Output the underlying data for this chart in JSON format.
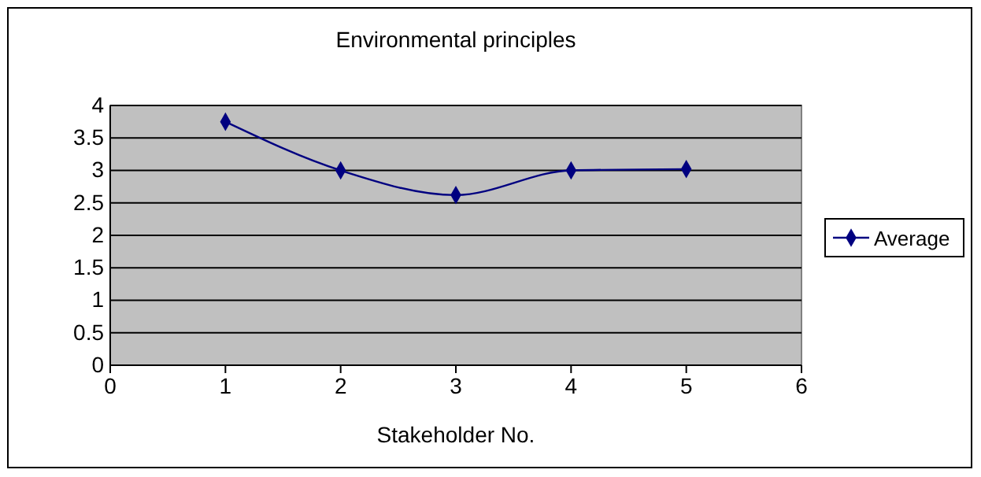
{
  "chart_data": {
    "type": "line",
    "title": "Environmental principles",
    "xlabel": "Stakeholder No.",
    "x": [
      1,
      2,
      3,
      4,
      5
    ],
    "series": [
      {
        "name": "Average",
        "color": "#000080",
        "values": [
          3.75,
          3.0,
          2.62,
          3.0,
          3.02
        ]
      }
    ],
    "xlim": [
      0,
      6
    ],
    "xticks": [
      0,
      1,
      2,
      3,
      4,
      5,
      6
    ],
    "ylim": [
      0,
      4
    ],
    "yticks": [
      0,
      0.5,
      1,
      1.5,
      2,
      2.5,
      3,
      3.5,
      4
    ],
    "grid": "y",
    "legend": "right",
    "marker": "diamond",
    "line_style": "solid"
  }
}
